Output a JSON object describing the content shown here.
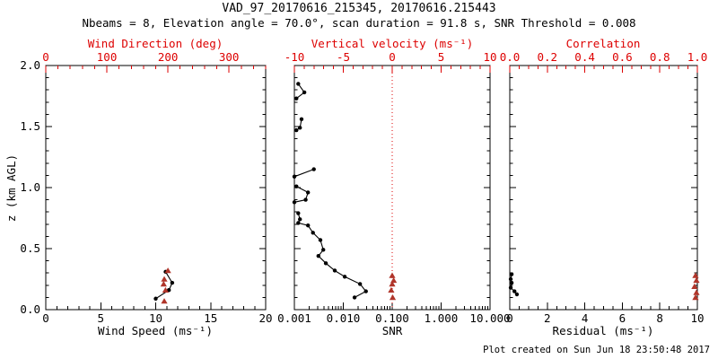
{
  "title": "VAD_97_20170616_215345, 20170616.215443",
  "subtitle": "Nbeams = 8, Elevation angle = 70.0°, scan duration = 91.8 s, SNR Threshold = 0.008",
  "footer": "Plot created on Sun Jun 18 23:50:48 2017",
  "y_axis_label": "z (km AGL)",
  "colors": {
    "axis_red": "#dd0000",
    "marker_red": "#b0352a",
    "black": "#000000"
  },
  "chart_data": [
    {
      "type": "scatter",
      "panel": "wind",
      "y_axis": {
        "label": "z (km AGL)",
        "min": 0,
        "max": 2,
        "tick_values": [
          0,
          0.5,
          1,
          1.5,
          2
        ],
        "tick_labels": [
          "0.0",
          "0.5",
          "1.0",
          "1.5",
          "2.0"
        ],
        "minor_step": 0.1,
        "show_labels": true
      },
      "bottom_axis": {
        "label": "Wind Speed (ms⁻¹)",
        "scale": "linear",
        "min": 0,
        "max": 20,
        "tick_values": [
          0,
          5,
          10,
          15,
          20
        ],
        "tick_labels": [
          "0",
          "5",
          "10",
          "15",
          "20"
        ],
        "minor_step": 1,
        "color": "black"
      },
      "top_axis": {
        "label": "Wind Direction (deg)",
        "scale": "linear",
        "min": 0,
        "max": 360,
        "tick_values": [
          0,
          100,
          200,
          300
        ],
        "tick_labels": [
          "0",
          "100",
          "200",
          "300"
        ],
        "minor_step": 20,
        "color": "red"
      },
      "series": [
        {
          "name": "wind-speed-profile",
          "axis": "bottom",
          "marker": "dot",
          "color": "black",
          "line": true,
          "segments": [
            [
              [
                10.9,
                0.31
              ],
              [
                11.5,
                0.22
              ],
              [
                11.2,
                0.16
              ],
              [
                10.0,
                0.09
              ]
            ]
          ]
        },
        {
          "name": "wind-direction-markers",
          "axis": "top",
          "marker": "triangle",
          "color": "red",
          "line": false,
          "segments": [
            [
              [
                200,
                0.32
              ],
              [
                194,
                0.25
              ],
              [
                193,
                0.21
              ],
              [
                196,
                0.16
              ],
              [
                194,
                0.07
              ]
            ]
          ]
        }
      ]
    },
    {
      "type": "scatter",
      "panel": "snr",
      "y_axis": {
        "min": 0,
        "max": 2,
        "tick_values": [
          0,
          0.5,
          1,
          1.5,
          2
        ],
        "tick_labels": [
          "0.0",
          "0.5",
          "1.0",
          "1.5",
          "2.0"
        ],
        "minor_step": 0.1,
        "show_labels": false
      },
      "bottom_axis": {
        "label": "SNR",
        "scale": "log",
        "min": 0.001,
        "max": 10,
        "tick_values": [
          0.001,
          0.01,
          0.1,
          1,
          10
        ],
        "tick_labels": [
          "0.001",
          "0.010",
          "0.100",
          "1.000",
          "10.000"
        ],
        "color": "black"
      },
      "top_axis": {
        "label": "Vertical velocity (ms⁻¹)",
        "scale": "linear",
        "min": -10,
        "max": 10,
        "tick_values": [
          -10,
          -5,
          0,
          5,
          10
        ],
        "tick_labels": [
          "-10",
          "-5",
          "0",
          "5",
          "10"
        ],
        "minor_step": 1,
        "color": "red"
      },
      "ref_line": {
        "axis": "top",
        "value": 0,
        "style": "dotted",
        "color": "red"
      },
      "series": [
        {
          "name": "snr-profile",
          "axis": "bottom",
          "marker": "dot",
          "color": "black",
          "line": true,
          "segments": [
            [
              [
                0.0012,
                1.85
              ],
              [
                0.0016,
                1.78
              ],
              [
                0.0011,
                1.73
              ]
            ],
            [
              [
                0.0014,
                1.56
              ],
              [
                0.0013,
                1.49
              ],
              [
                0.0011,
                1.47
              ]
            ],
            [
              [
                0.0025,
                1.15
              ],
              [
                0.001,
                1.09
              ]
            ],
            [
              [
                0.0011,
                1.01
              ],
              [
                0.0019,
                0.96
              ],
              [
                0.0017,
                0.9
              ],
              [
                0.001,
                0.88
              ]
            ],
            [
              [
                0.0012,
                0.79
              ],
              [
                0.0013,
                0.74
              ],
              [
                0.0012,
                0.71
              ],
              [
                0.0019,
                0.69
              ],
              [
                0.0024,
                0.63
              ],
              [
                0.0034,
                0.57
              ],
              [
                0.0039,
                0.49
              ],
              [
                0.0031,
                0.44
              ],
              [
                0.0044,
                0.38
              ],
              [
                0.0067,
                0.32
              ],
              [
                0.0107,
                0.27
              ],
              [
                0.022,
                0.21
              ],
              [
                0.029,
                0.15
              ],
              [
                0.017,
                0.1
              ]
            ]
          ]
        },
        {
          "name": "vertical-velocity-markers",
          "axis": "top",
          "marker": "triangle",
          "color": "red",
          "line": false,
          "segments": [
            [
              [
                0.0,
                0.28
              ],
              [
                0.15,
                0.24
              ],
              [
                0.0,
                0.21
              ],
              [
                -0.1,
                0.16
              ],
              [
                0.05,
                0.1
              ]
            ]
          ]
        }
      ]
    },
    {
      "type": "scatter",
      "panel": "residual",
      "y_axis": {
        "min": 0,
        "max": 2,
        "tick_values": [
          0,
          0.5,
          1,
          1.5,
          2
        ],
        "tick_labels": [
          "0.0",
          "0.5",
          "1.0",
          "1.5",
          "2.0"
        ],
        "minor_step": 0.1,
        "show_labels": false
      },
      "bottom_axis": {
        "label": "Residual (ms⁻¹)",
        "scale": "linear",
        "min": 0,
        "max": 10,
        "tick_values": [
          0,
          2,
          4,
          6,
          8,
          10
        ],
        "tick_labels": [
          "0",
          "2",
          "4",
          "6",
          "8",
          "10"
        ],
        "minor_step": 0.5,
        "color": "black"
      },
      "top_axis": {
        "label": "Correlation",
        "scale": "linear",
        "min": 0,
        "max": 1,
        "tick_values": [
          0,
          0.2,
          0.4,
          0.6,
          0.8,
          1
        ],
        "tick_labels": [
          "0.0",
          "0.2",
          "0.4",
          "0.6",
          "0.8",
          "1.0"
        ],
        "minor_step": 0.05,
        "color": "red"
      },
      "series": [
        {
          "name": "residual-profile",
          "axis": "bottom",
          "marker": "dot",
          "color": "black",
          "line": true,
          "segments": [
            [
              [
                0.1,
                0.29
              ],
              [
                0.05,
                0.25
              ],
              [
                0.1,
                0.22
              ],
              [
                0.05,
                0.18
              ],
              [
                0.25,
                0.15
              ],
              [
                0.38,
                0.125
              ]
            ]
          ]
        },
        {
          "name": "correlation-markers",
          "axis": "top",
          "marker": "triangle",
          "color": "red",
          "line": false,
          "segments": [
            [
              [
                0.99,
                0.28
              ],
              [
                0.995,
                0.24
              ],
              [
                0.985,
                0.19
              ],
              [
                0.995,
                0.14
              ],
              [
                0.99,
                0.1
              ]
            ]
          ]
        }
      ]
    }
  ]
}
